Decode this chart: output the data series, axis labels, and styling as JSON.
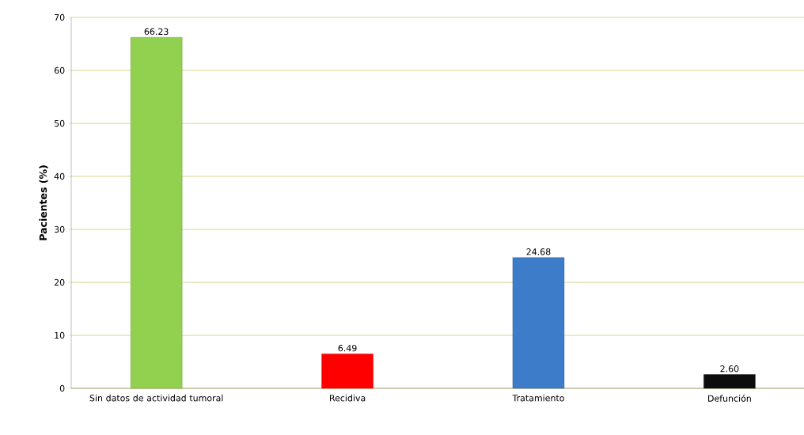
{
  "chart_data": {
    "type": "bar",
    "ylabel": "Pacientes (%)",
    "categories": [
      "Sin datos de actividad tumoral",
      "Recidiva",
      "Tratamiento",
      "Defunción"
    ],
    "values": [
      66.23,
      6.49,
      24.68,
      2.6
    ],
    "value_labels": [
      "66.23",
      "6.49",
      "24.68",
      "2.60"
    ],
    "colors": [
      "#92d050",
      "#ff0000",
      "#3d7cc8",
      "#0d0d0d"
    ],
    "ylim": [
      0,
      70
    ],
    "yticks": [
      0,
      10,
      20,
      30,
      40,
      50,
      60,
      70
    ],
    "grid": "y"
  }
}
